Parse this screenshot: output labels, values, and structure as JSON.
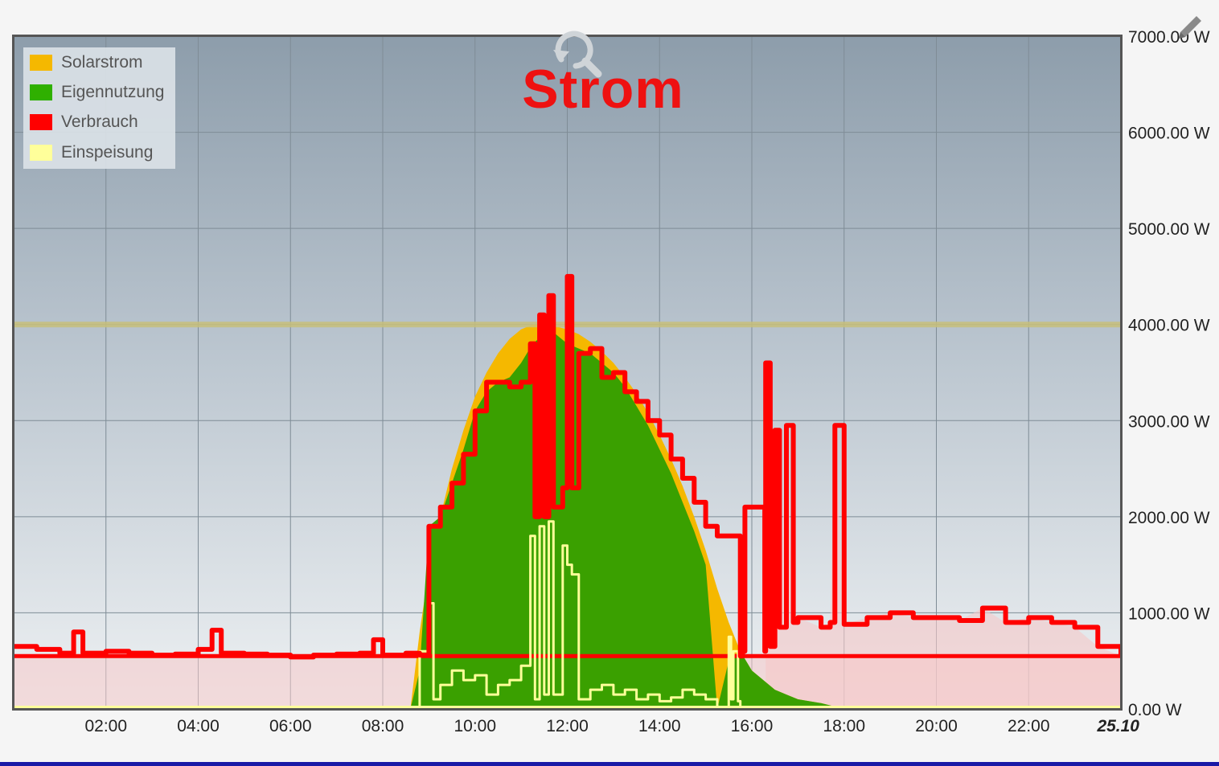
{
  "chart_data": {
    "type": "area",
    "title": "Strom",
    "x_labels": [
      "02:00",
      "04:00",
      "06:00",
      "08:00",
      "10:00",
      "12:00",
      "14:00",
      "16:00",
      "18:00",
      "20:00",
      "22:00",
      "25.10"
    ],
    "y_labels": [
      "0.00 W",
      "1000.00 W",
      "2000.00 W",
      "3000.00 W",
      "4000.00 W",
      "5000.00 W",
      "6000.00 W",
      "7000.00 W"
    ],
    "y_unit": "W",
    "ylim": [
      0,
      7000
    ],
    "xlim_hours": [
      0,
      24
    ],
    "y_axis_side": "right",
    "grid": true,
    "reference_lines": [
      {
        "value": 4000,
        "color": "#c8c07a"
      },
      {
        "value": 550,
        "color": "#ff0000"
      }
    ],
    "legend_position": "top-left",
    "series": [
      {
        "name": "Solarstrom",
        "color": "#f5b800",
        "kind": "area",
        "x": [
          8.6,
          8.8,
          9.0,
          9.25,
          9.5,
          9.75,
          10.0,
          10.25,
          10.5,
          10.75,
          11.0,
          11.25,
          11.5,
          11.75,
          12.0,
          12.25,
          12.5,
          12.75,
          13.0,
          13.25,
          13.5,
          13.75,
          14.0,
          14.25,
          14.5,
          14.75,
          15.0,
          15.25,
          15.5,
          15.75,
          16.0,
          16.25,
          16.5,
          16.75,
          17.0,
          17.5,
          18.0
        ],
        "y": [
          0,
          800,
          1450,
          2000,
          2500,
          2900,
          3250,
          3500,
          3700,
          3850,
          3950,
          4000,
          4000,
          3980,
          3950,
          3900,
          3820,
          3720,
          3600,
          3450,
          3280,
          3080,
          2850,
          2600,
          2320,
          2000,
          1650,
          1250,
          900,
          600,
          400,
          300,
          200,
          150,
          100,
          60,
          0
        ]
      },
      {
        "name": "Eigennutzung",
        "color": "#3aa000",
        "kind": "area",
        "x": [
          8.6,
          8.8,
          9.0,
          9.25,
          9.5,
          9.75,
          10.0,
          10.25,
          10.5,
          10.75,
          11.0,
          11.25,
          11.5,
          11.75,
          12.0,
          12.25,
          12.5,
          12.75,
          13.0,
          13.25,
          13.5,
          13.75,
          14.0,
          14.25,
          14.5,
          14.75,
          15.0,
          15.25,
          15.5,
          15.75,
          16.0,
          16.25,
          16.5,
          16.75,
          17.0,
          17.5,
          18.0
        ],
        "y": [
          0,
          400,
          1900,
          2000,
          2350,
          2700,
          3100,
          3300,
          3400,
          3450,
          3600,
          3800,
          3900,
          3900,
          3800,
          3750,
          3700,
          3600,
          3500,
          3350,
          3150,
          2950,
          2700,
          2450,
          2150,
          1850,
          1500,
          0,
          500,
          600,
          400,
          300,
          200,
          150,
          100,
          60,
          0
        ]
      },
      {
        "name": "Verbrauch",
        "color": "#ff0000",
        "kind": "line",
        "x": [
          0.0,
          0.5,
          1.0,
          1.3,
          1.5,
          2.0,
          2.5,
          3.0,
          3.5,
          4.0,
          4.3,
          4.5,
          5.0,
          5.5,
          6.0,
          6.5,
          7.0,
          7.5,
          7.8,
          8.0,
          8.5,
          8.8,
          9.0,
          9.25,
          9.5,
          9.75,
          10.0,
          10.25,
          10.5,
          10.75,
          11.0,
          11.2,
          11.3,
          11.4,
          11.5,
          11.6,
          11.7,
          11.9,
          12.0,
          12.1,
          12.25,
          12.5,
          12.75,
          13.0,
          13.25,
          13.5,
          13.75,
          14.0,
          14.25,
          14.5,
          14.75,
          15.0,
          15.25,
          15.5,
          15.75,
          15.8,
          15.85,
          16.25,
          16.28,
          16.3,
          16.4,
          16.5,
          16.6,
          16.75,
          16.9,
          17.0,
          17.5,
          17.7,
          17.8,
          18.0,
          18.5,
          19.0,
          19.5,
          20.0,
          20.5,
          21.0,
          21.5,
          22.0,
          22.5,
          23.0,
          23.5,
          24.0
        ],
        "y": [
          650,
          620,
          580,
          800,
          580,
          600,
          580,
          560,
          570,
          620,
          820,
          580,
          570,
          560,
          540,
          560,
          570,
          580,
          720,
          560,
          580,
          560,
          1900,
          2100,
          2350,
          2650,
          3100,
          3400,
          3400,
          3350,
          3400,
          3800,
          2000,
          4100,
          2000,
          4300,
          2100,
          2300,
          4500,
          2300,
          3700,
          3750,
          3450,
          3500,
          3300,
          3200,
          3000,
          2850,
          2600,
          2400,
          2150,
          1900,
          1800,
          1800,
          550,
          600,
          2100,
          2100,
          600,
          3600,
          650,
          2900,
          850,
          2950,
          900,
          950,
          850,
          900,
          2950,
          880,
          950,
          1000,
          950,
          950,
          920,
          1050,
          900,
          950,
          900,
          850,
          650,
          550
        ]
      },
      {
        "name": "Einspeisung",
        "color": "#ffff9a",
        "kind": "line",
        "x": [
          8.6,
          8.8,
          9.0,
          9.1,
          9.25,
          9.5,
          9.75,
          10.0,
          10.25,
          10.5,
          10.75,
          11.0,
          11.2,
          11.3,
          11.4,
          11.5,
          11.6,
          11.7,
          11.9,
          12.0,
          12.1,
          12.25,
          12.5,
          12.75,
          13.0,
          13.25,
          13.5,
          13.75,
          14.0,
          14.25,
          14.5,
          14.75,
          15.0,
          15.25,
          15.5,
          15.55,
          15.6,
          15.7,
          15.75,
          15.85
        ],
        "y": [
          0,
          600,
          1100,
          100,
          250,
          400,
          300,
          350,
          150,
          250,
          300,
          450,
          1800,
          100,
          1900,
          150,
          1950,
          150,
          1700,
          1500,
          1400,
          100,
          200,
          250,
          150,
          200,
          100,
          150,
          80,
          120,
          200,
          150,
          100,
          0,
          750,
          100,
          600,
          80,
          0,
          0
        ]
      }
    ]
  },
  "icons": {
    "reset_zoom": "magnifier-reset-icon",
    "edit": "pencil-icon"
  }
}
